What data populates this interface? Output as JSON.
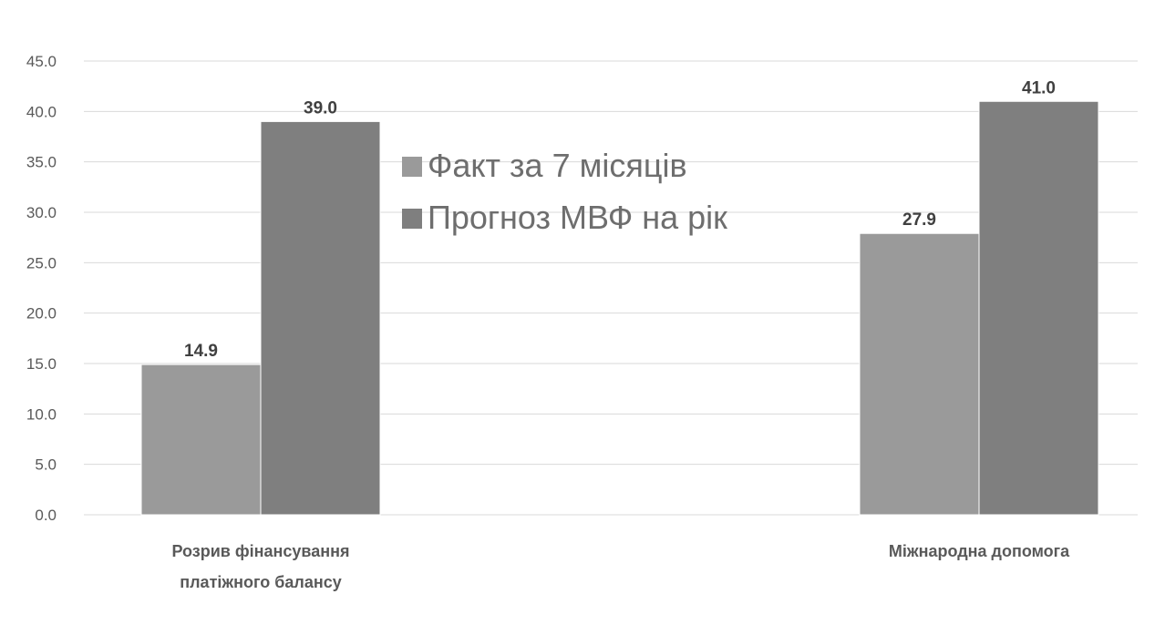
{
  "chart_data": {
    "type": "bar",
    "categories": [
      [
        "Розрив фінансування",
        "платіжного балансу"
      ],
      [
        "Міжнародна допомога"
      ]
    ],
    "series": [
      {
        "name": "Факт за 7 місяців",
        "values": [
          14.9,
          27.9
        ],
        "color": "#9a9a9a"
      },
      {
        "name": "Прогноз МВФ на рік",
        "values": [
          39.0,
          41.0
        ],
        "color": "#7f7f7f"
      }
    ],
    "data_labels": [
      [
        "14.9",
        "27.9"
      ],
      [
        "39.0",
        "41.0"
      ]
    ],
    "y_ticks": [
      "0.0",
      "5.0",
      "10.0",
      "15.0",
      "20.0",
      "25.0",
      "30.0",
      "35.0",
      "40.0",
      "45.0"
    ],
    "ylim": [
      0,
      45
    ],
    "grid": true,
    "legend_position": "top-center"
  }
}
